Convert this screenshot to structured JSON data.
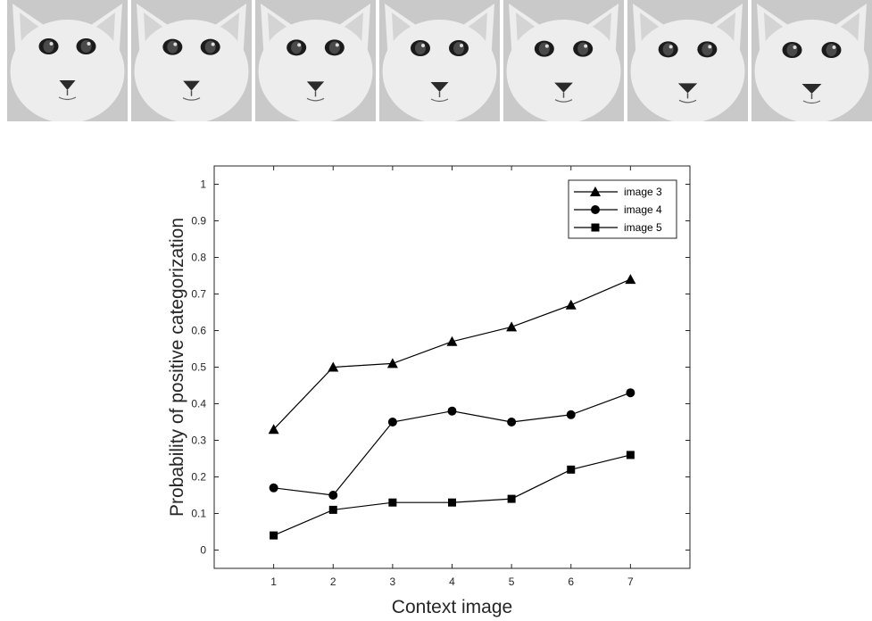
{
  "figure": {
    "face_strip": {
      "count": 7,
      "description": "morphed cat face images",
      "palette": {
        "bg": "#c9c9c9",
        "face": "#ededed",
        "ear_inner": "#d4d4d4",
        "eye": "#1b1b1b",
        "iris": "#4a4a4a",
        "nose": "#2b2b2b"
      }
    }
  },
  "chart_data": {
    "type": "line",
    "title": "",
    "xlabel": "Context image",
    "ylabel": "Probability of positive categorization",
    "x": [
      1,
      2,
      3,
      4,
      5,
      6,
      7
    ],
    "xticks": [
      "1",
      "2",
      "3",
      "4",
      "5",
      "6",
      "7"
    ],
    "yticks": [
      "0",
      "0.1",
      "0.2",
      "0.3",
      "0.4",
      "0.5",
      "0.6",
      "0.7",
      "0.8",
      "0.9",
      "1"
    ],
    "xlim": [
      0,
      8
    ],
    "ylim": [
      -0.05,
      1.05
    ],
    "grid": false,
    "legend": "top-right",
    "series": [
      {
        "name": "image 3",
        "marker": "triangle",
        "values": [
          0.33,
          0.5,
          0.51,
          0.57,
          0.61,
          0.67,
          0.74
        ]
      },
      {
        "name": "image 4",
        "marker": "circle",
        "values": [
          0.17,
          0.15,
          0.35,
          0.38,
          0.35,
          0.37,
          0.43
        ]
      },
      {
        "name": "image 5",
        "marker": "square",
        "values": [
          0.04,
          0.11,
          0.13,
          0.13,
          0.14,
          0.22,
          0.26
        ]
      }
    ],
    "colors": {
      "line": "#000000",
      "axis": "#262626",
      "tick_text": "#262626"
    }
  }
}
